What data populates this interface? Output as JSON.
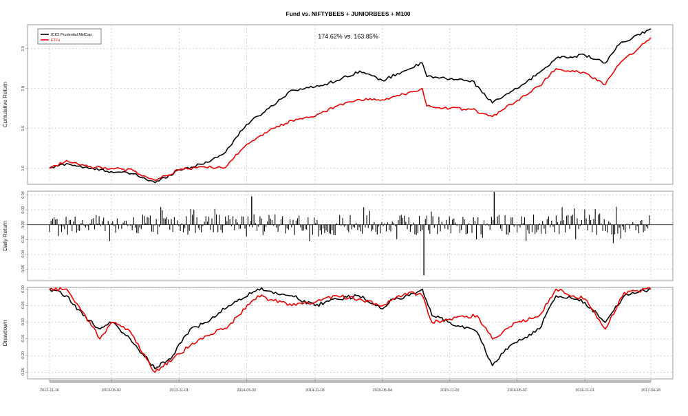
{
  "title": "Fund vs. NIFTYBEES + JUNIORBEES + M100",
  "colors": {
    "fund": "#000000",
    "etf": "#ee0000",
    "grid": "#b0b0b0",
    "frame": "#808080",
    "band": "#bbbbbb"
  },
  "chart_data": [
    {
      "type": "line",
      "panel": "cumulative",
      "ylabel": "Cumulative Return",
      "annotation": "174.62% vs. 163.85%",
      "legend": {
        "position": "top-left",
        "entries": [
          "ICICI Prudential MidCap",
          "ETFs"
        ]
      },
      "yticks": [
        "1.0",
        "1.5",
        "2.0",
        "2.5"
      ],
      "ylim": [
        0.8,
        2.8
      ],
      "grid": true,
      "series": [
        {
          "name": "ICICI Prudential MidCap",
          "color": "#000000",
          "x": [
            "2012-11-16",
            "2013-01-01",
            "2013-03-01",
            "2013-05-02",
            "2013-07-01",
            "2013-08-28",
            "2013-11-01",
            "2014-01-01",
            "2014-03-01",
            "2014-05-02",
            "2014-07-01",
            "2014-09-01",
            "2014-11-03",
            "2015-01-01",
            "2015-03-04",
            "2015-05-04",
            "2015-07-01",
            "2015-08-20",
            "2015-09-01",
            "2015-11-02",
            "2016-01-01",
            "2016-02-25",
            "2016-05-02",
            "2016-07-01",
            "2016-08-15",
            "2016-11-01",
            "2016-12-26",
            "2017-02-01",
            "2017-04-28"
          ],
          "y": [
            1.0,
            1.06,
            1.0,
            0.96,
            0.93,
            0.82,
            0.98,
            1.05,
            1.18,
            1.55,
            1.75,
            1.98,
            2.02,
            2.1,
            2.22,
            2.1,
            2.22,
            2.32,
            2.15,
            2.12,
            2.1,
            1.82,
            2.0,
            2.2,
            2.38,
            2.42,
            2.32,
            2.55,
            2.75
          ]
        },
        {
          "name": "ETFs",
          "color": "#ee0000",
          "x": [
            "2012-11-16",
            "2013-01-01",
            "2013-03-01",
            "2013-05-02",
            "2013-07-01",
            "2013-08-28",
            "2013-11-01",
            "2014-01-01",
            "2014-03-01",
            "2014-05-02",
            "2014-07-01",
            "2014-09-01",
            "2014-11-03",
            "2015-01-01",
            "2015-03-04",
            "2015-05-04",
            "2015-07-01",
            "2015-08-20",
            "2015-09-01",
            "2015-11-02",
            "2016-01-01",
            "2016-02-25",
            "2016-05-02",
            "2016-07-01",
            "2016-08-15",
            "2016-11-01",
            "2016-12-26",
            "2017-02-01",
            "2017-04-28"
          ],
          "y": [
            1.0,
            1.1,
            1.02,
            1.0,
            0.97,
            0.85,
            0.98,
            1.02,
            1.0,
            1.3,
            1.47,
            1.6,
            1.65,
            1.78,
            1.86,
            1.86,
            1.93,
            2.0,
            1.78,
            1.75,
            1.74,
            1.65,
            1.85,
            2.03,
            2.25,
            2.2,
            2.05,
            2.3,
            2.64
          ]
        }
      ]
    },
    {
      "type": "bar",
      "panel": "daily",
      "ylabel": "Daily Return",
      "yticks": [
        "0.04",
        "0.02",
        "0.00",
        "-0.02",
        "-0.04",
        "-0.06"
      ],
      "ylim": [
        -0.075,
        0.045
      ],
      "grid": true,
      "extremes": [
        {
          "x": "2015-08-24",
          "y": -0.068
        },
        {
          "x": "2016-03-01",
          "y": 0.044
        },
        {
          "x": "2014-05-16",
          "y": 0.038
        }
      ]
    },
    {
      "type": "line",
      "panel": "drawdown",
      "ylabel": "Drawdown",
      "yticks": [
        "0.00",
        "-0.05",
        "-0.10",
        "-0.15",
        "-0.20",
        "-0.25"
      ],
      "ylim": [
        -0.27,
        0.005
      ],
      "grid": true,
      "series": [
        {
          "name": "ICICI Prudential MidCap",
          "color": "#000000",
          "x": [
            "2012-11-16",
            "2013-01-01",
            "2013-02-15",
            "2013-04-01",
            "2013-05-02",
            "2013-06-15",
            "2013-08-28",
            "2013-10-15",
            "2013-12-01",
            "2014-01-15",
            "2014-03-15",
            "2014-06-01",
            "2014-09-01",
            "2014-11-03",
            "2015-01-01",
            "2015-03-01",
            "2015-05-04",
            "2015-06-01",
            "2015-07-15",
            "2015-08-20",
            "2015-09-15",
            "2015-11-02",
            "2016-01-15",
            "2016-02-25",
            "2016-04-01",
            "2016-05-02",
            "2016-07-01",
            "2016-08-15",
            "2016-10-01",
            "2016-11-01",
            "2016-12-26",
            "2017-02-15",
            "2017-04-28"
          ],
          "y": [
            0.0,
            -0.02,
            -0.08,
            -0.12,
            -0.1,
            -0.14,
            -0.24,
            -0.2,
            -0.12,
            -0.1,
            -0.05,
            0.0,
            -0.02,
            -0.05,
            -0.03,
            -0.02,
            -0.06,
            -0.03,
            -0.02,
            0.0,
            -0.08,
            -0.1,
            -0.13,
            -0.23,
            -0.18,
            -0.16,
            -0.12,
            -0.02,
            -0.03,
            -0.04,
            -0.1,
            -0.02,
            0.0
          ]
        },
        {
          "name": "ETFs",
          "color": "#ee0000",
          "x": [
            "2012-11-16",
            "2013-01-01",
            "2013-02-15",
            "2013-04-01",
            "2013-05-02",
            "2013-06-15",
            "2013-08-28",
            "2013-10-15",
            "2013-12-01",
            "2014-01-15",
            "2014-03-15",
            "2014-06-01",
            "2014-09-01",
            "2014-11-03",
            "2015-01-01",
            "2015-03-01",
            "2015-05-04",
            "2015-06-01",
            "2015-07-15",
            "2015-08-20",
            "2015-09-15",
            "2015-11-02",
            "2016-01-15",
            "2016-02-25",
            "2016-04-01",
            "2016-05-02",
            "2016-07-01",
            "2016-08-15",
            "2016-10-01",
            "2016-11-01",
            "2016-12-26",
            "2017-02-15",
            "2017-04-28"
          ],
          "y": [
            0.0,
            0.0,
            -0.07,
            -0.15,
            -0.1,
            -0.12,
            -0.25,
            -0.21,
            -0.17,
            -0.14,
            -0.11,
            -0.02,
            -0.05,
            -0.04,
            -0.02,
            -0.03,
            -0.05,
            -0.03,
            -0.01,
            -0.02,
            -0.1,
            -0.09,
            -0.08,
            -0.15,
            -0.12,
            -0.1,
            -0.08,
            0.0,
            -0.02,
            -0.03,
            -0.12,
            -0.01,
            0.0
          ]
        }
      ]
    }
  ],
  "xaxis": {
    "ticks": [
      "2012-11-16",
      "2013-05-02",
      "2013-11-01",
      "2014-05-02",
      "2014-11-03",
      "2015-05-04",
      "2015-11-02",
      "2016-05-02",
      "2016-11-01",
      "2017-04-28"
    ]
  }
}
